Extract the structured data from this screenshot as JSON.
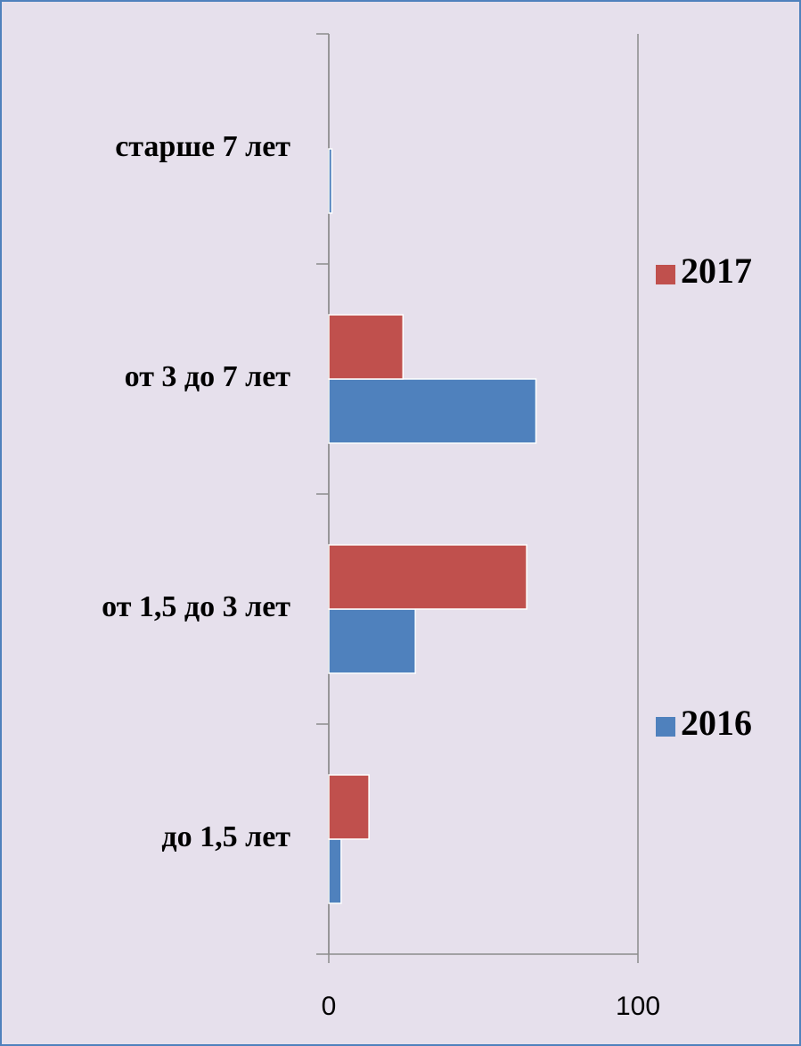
{
  "chart_data": {
    "type": "hbar",
    "categories": [
      "до 1,5 лет",
      "от 1,5 до 3 лет",
      "от 3 до 7 лет",
      "старше 7 лет"
    ],
    "series": [
      {
        "name": "2016",
        "color": "#4f81bd",
        "values": [
          4,
          28,
          67,
          1
        ]
      },
      {
        "name": "2017",
        "color": "#c0504d",
        "values": [
          13,
          64,
          24,
          0
        ]
      }
    ],
    "xlim": [
      0,
      100
    ],
    "xticks": [
      0,
      100
    ],
    "grid": true,
    "legend": "right"
  }
}
